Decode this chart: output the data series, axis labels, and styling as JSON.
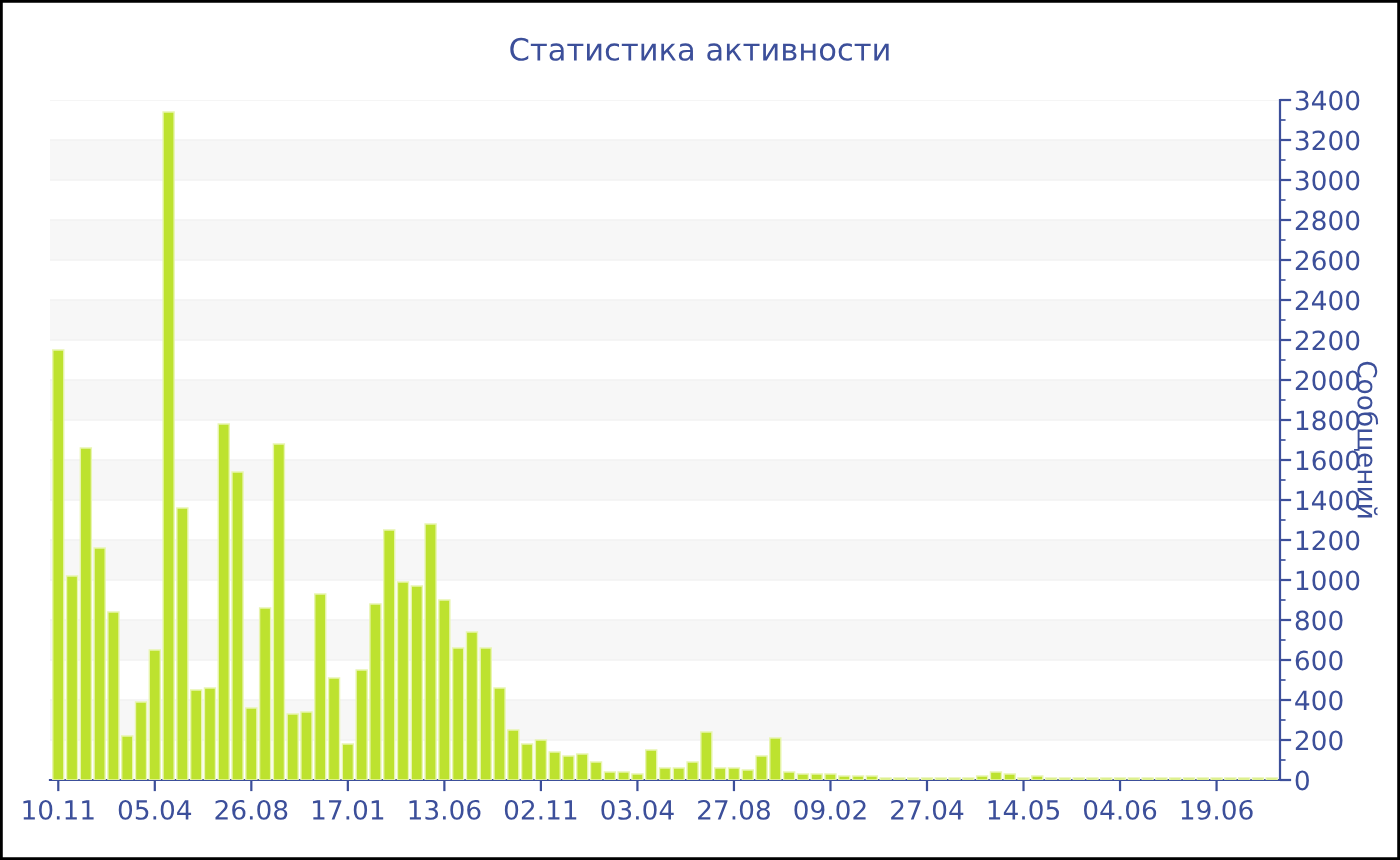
{
  "chart_data": {
    "type": "bar",
    "title": "Статистика активности",
    "ylabel": "Сообщений",
    "categories": [
      "10.11",
      null,
      null,
      null,
      null,
      null,
      null,
      "05.04",
      null,
      null,
      null,
      null,
      null,
      null,
      "26.08",
      null,
      null,
      null,
      null,
      null,
      null,
      "17.01",
      null,
      null,
      null,
      null,
      null,
      null,
      "13.06",
      null,
      null,
      null,
      null,
      null,
      null,
      "02.11",
      null,
      null,
      null,
      null,
      null,
      null,
      "03.04",
      null,
      null,
      null,
      null,
      null,
      null,
      "27.08",
      null,
      null,
      null,
      null,
      null,
      null,
      "09.02",
      null,
      null,
      null,
      null,
      null,
      null,
      "27.04",
      null,
      null,
      null,
      null,
      null,
      null,
      "14.05",
      null,
      null,
      null,
      null,
      null,
      null,
      "04.06",
      null,
      null,
      null,
      null,
      null,
      null,
      "19.06",
      null,
      null,
      null,
      null
    ],
    "values": [
      2150,
      1020,
      1660,
      1160,
      840,
      220,
      390,
      650,
      3340,
      1360,
      450,
      460,
      1780,
      1540,
      360,
      860,
      1680,
      330,
      340,
      930,
      510,
      180,
      550,
      880,
      1250,
      990,
      970,
      1280,
      900,
      660,
      740,
      660,
      460,
      250,
      180,
      200,
      140,
      120,
      130,
      90,
      40,
      40,
      30,
      150,
      60,
      60,
      90,
      240,
      60,
      60,
      50,
      120,
      210,
      40,
      30,
      30,
      30,
      20,
      20,
      20,
      10,
      10,
      10,
      10,
      10,
      10,
      10,
      20,
      40,
      30,
      10,
      20,
      10,
      10,
      10,
      10,
      10,
      10,
      10,
      10,
      10,
      10,
      10,
      10,
      10,
      10,
      10,
      10,
      10
    ],
    "color": "#bde22f",
    "ylim": [
      0,
      3400
    ],
    "yticks": [
      0,
      200,
      400,
      600,
      800,
      1000,
      1200,
      1400,
      1600,
      1800,
      2000,
      2200,
      2400,
      2600,
      2800,
      3000,
      3200,
      3400
    ],
    "grid": "y",
    "legend": false
  }
}
